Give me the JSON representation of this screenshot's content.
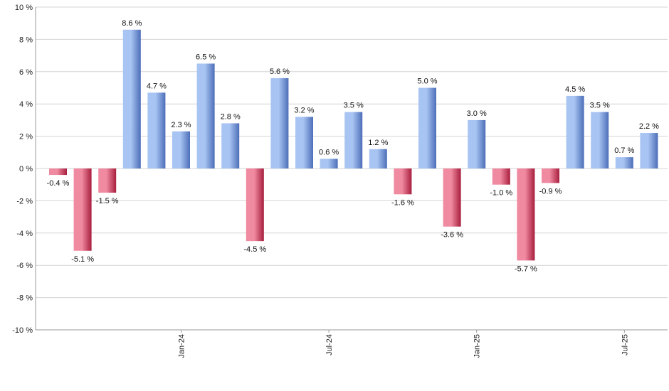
{
  "chart_data": {
    "type": "bar",
    "values": [
      -0.4,
      -5.1,
      -1.5,
      8.6,
      4.7,
      2.3,
      6.5,
      2.8,
      -4.5,
      5.6,
      3.2,
      0.6,
      3.5,
      1.2,
      -1.6,
      5.0,
      -3.6,
      3.0,
      -1.0,
      -5.7,
      -0.9,
      4.5,
      3.5,
      0.7,
      2.2
    ],
    "data_labels": [
      "-0.4 %",
      "-5.1 %",
      "-1.5 %",
      "8.6 %",
      "4.7 %",
      "2.3 %",
      "6.5 %",
      "2.8 %",
      "-4.5 %",
      "5.6 %",
      "3.2 %",
      "0.6 %",
      "3.5 %",
      "1.2 %",
      "-1.6 %",
      "5.0 %",
      "-3.6 %",
      "3.0 %",
      "-1.0 %",
      "-5.7 %",
      "-0.9 %",
      "4.5 %",
      "3.5 %",
      "0.7 %",
      "2.2 %"
    ],
    "ylim": [
      -10,
      10
    ],
    "y_ticks": [
      10,
      8,
      6,
      4,
      2,
      0,
      -2,
      -4,
      -6,
      -8,
      -10
    ],
    "y_tick_labels": [
      "10 %",
      "8 %",
      "6 %",
      "4 %",
      "2 %",
      "0 %",
      "-2 %",
      "-4 %",
      "-6 %",
      "-8 %",
      "-10 %"
    ],
    "x_ticks": [
      {
        "label": "Jan-24",
        "index": 5
      },
      {
        "label": "Jul-24",
        "index": 11
      },
      {
        "label": "Jan-25",
        "index": 17
      },
      {
        "label": "Jul-25",
        "index": 23
      }
    ],
    "grid": true,
    "legend": false,
    "colors": {
      "positive_light": "#a8c4f2",
      "positive_dark": "#4c6eb8",
      "negative_light": "#f08aa0",
      "negative_dark": "#a81e3e"
    },
    "title": "",
    "xlabel": "",
    "ylabel": ""
  }
}
